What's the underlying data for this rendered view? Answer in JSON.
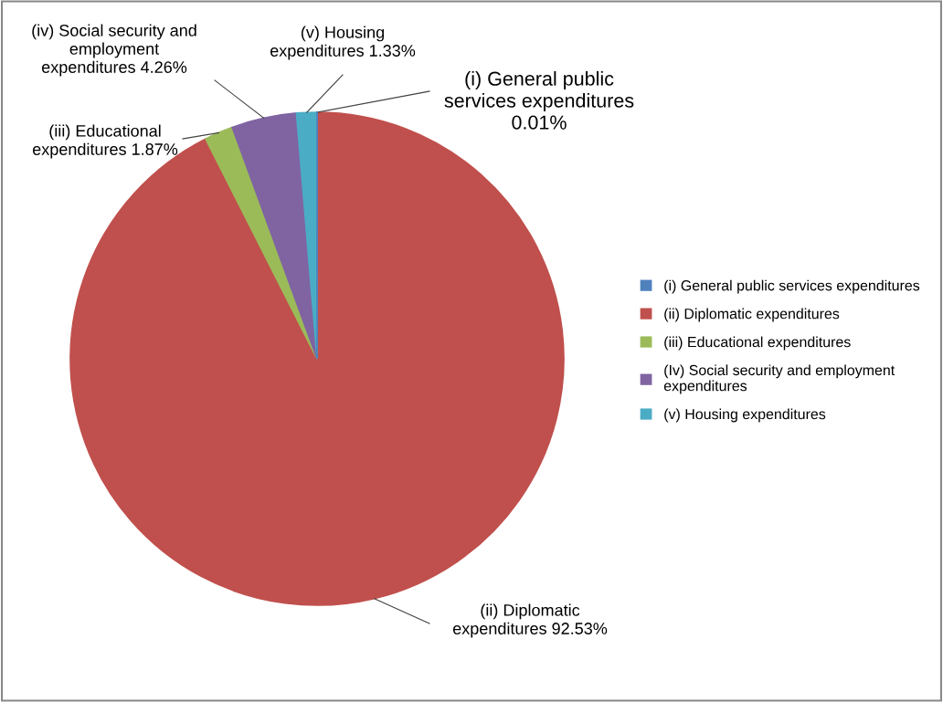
{
  "chart_data": {
    "type": "pie",
    "categories": [
      "(i) General public services expenditures",
      "(ii) Diplomatic expenditures",
      "(iii) Educational expenditures",
      "(Iv) Social security and employment expenditures",
      "(v) Housing expenditures"
    ],
    "values": [
      0.01,
      92.53,
      1.87,
      4.26,
      1.33
    ],
    "colors": [
      "#4f81bd",
      "#c0504d",
      "#9bbb59",
      "#8064a2",
      "#4bacc6"
    ],
    "value_labels": [
      "(i) General public\nservices expenditures\n0.01%",
      "(ii) Diplomatic\nexpenditures 92.53%",
      "(iii) Educational\nexpenditures 1.87%",
      "(iv) Social security and\nemployment\nexpenditures 4.26%",
      "(v) Housing\nexpenditures 1.33%"
    ],
    "legend": "right"
  }
}
